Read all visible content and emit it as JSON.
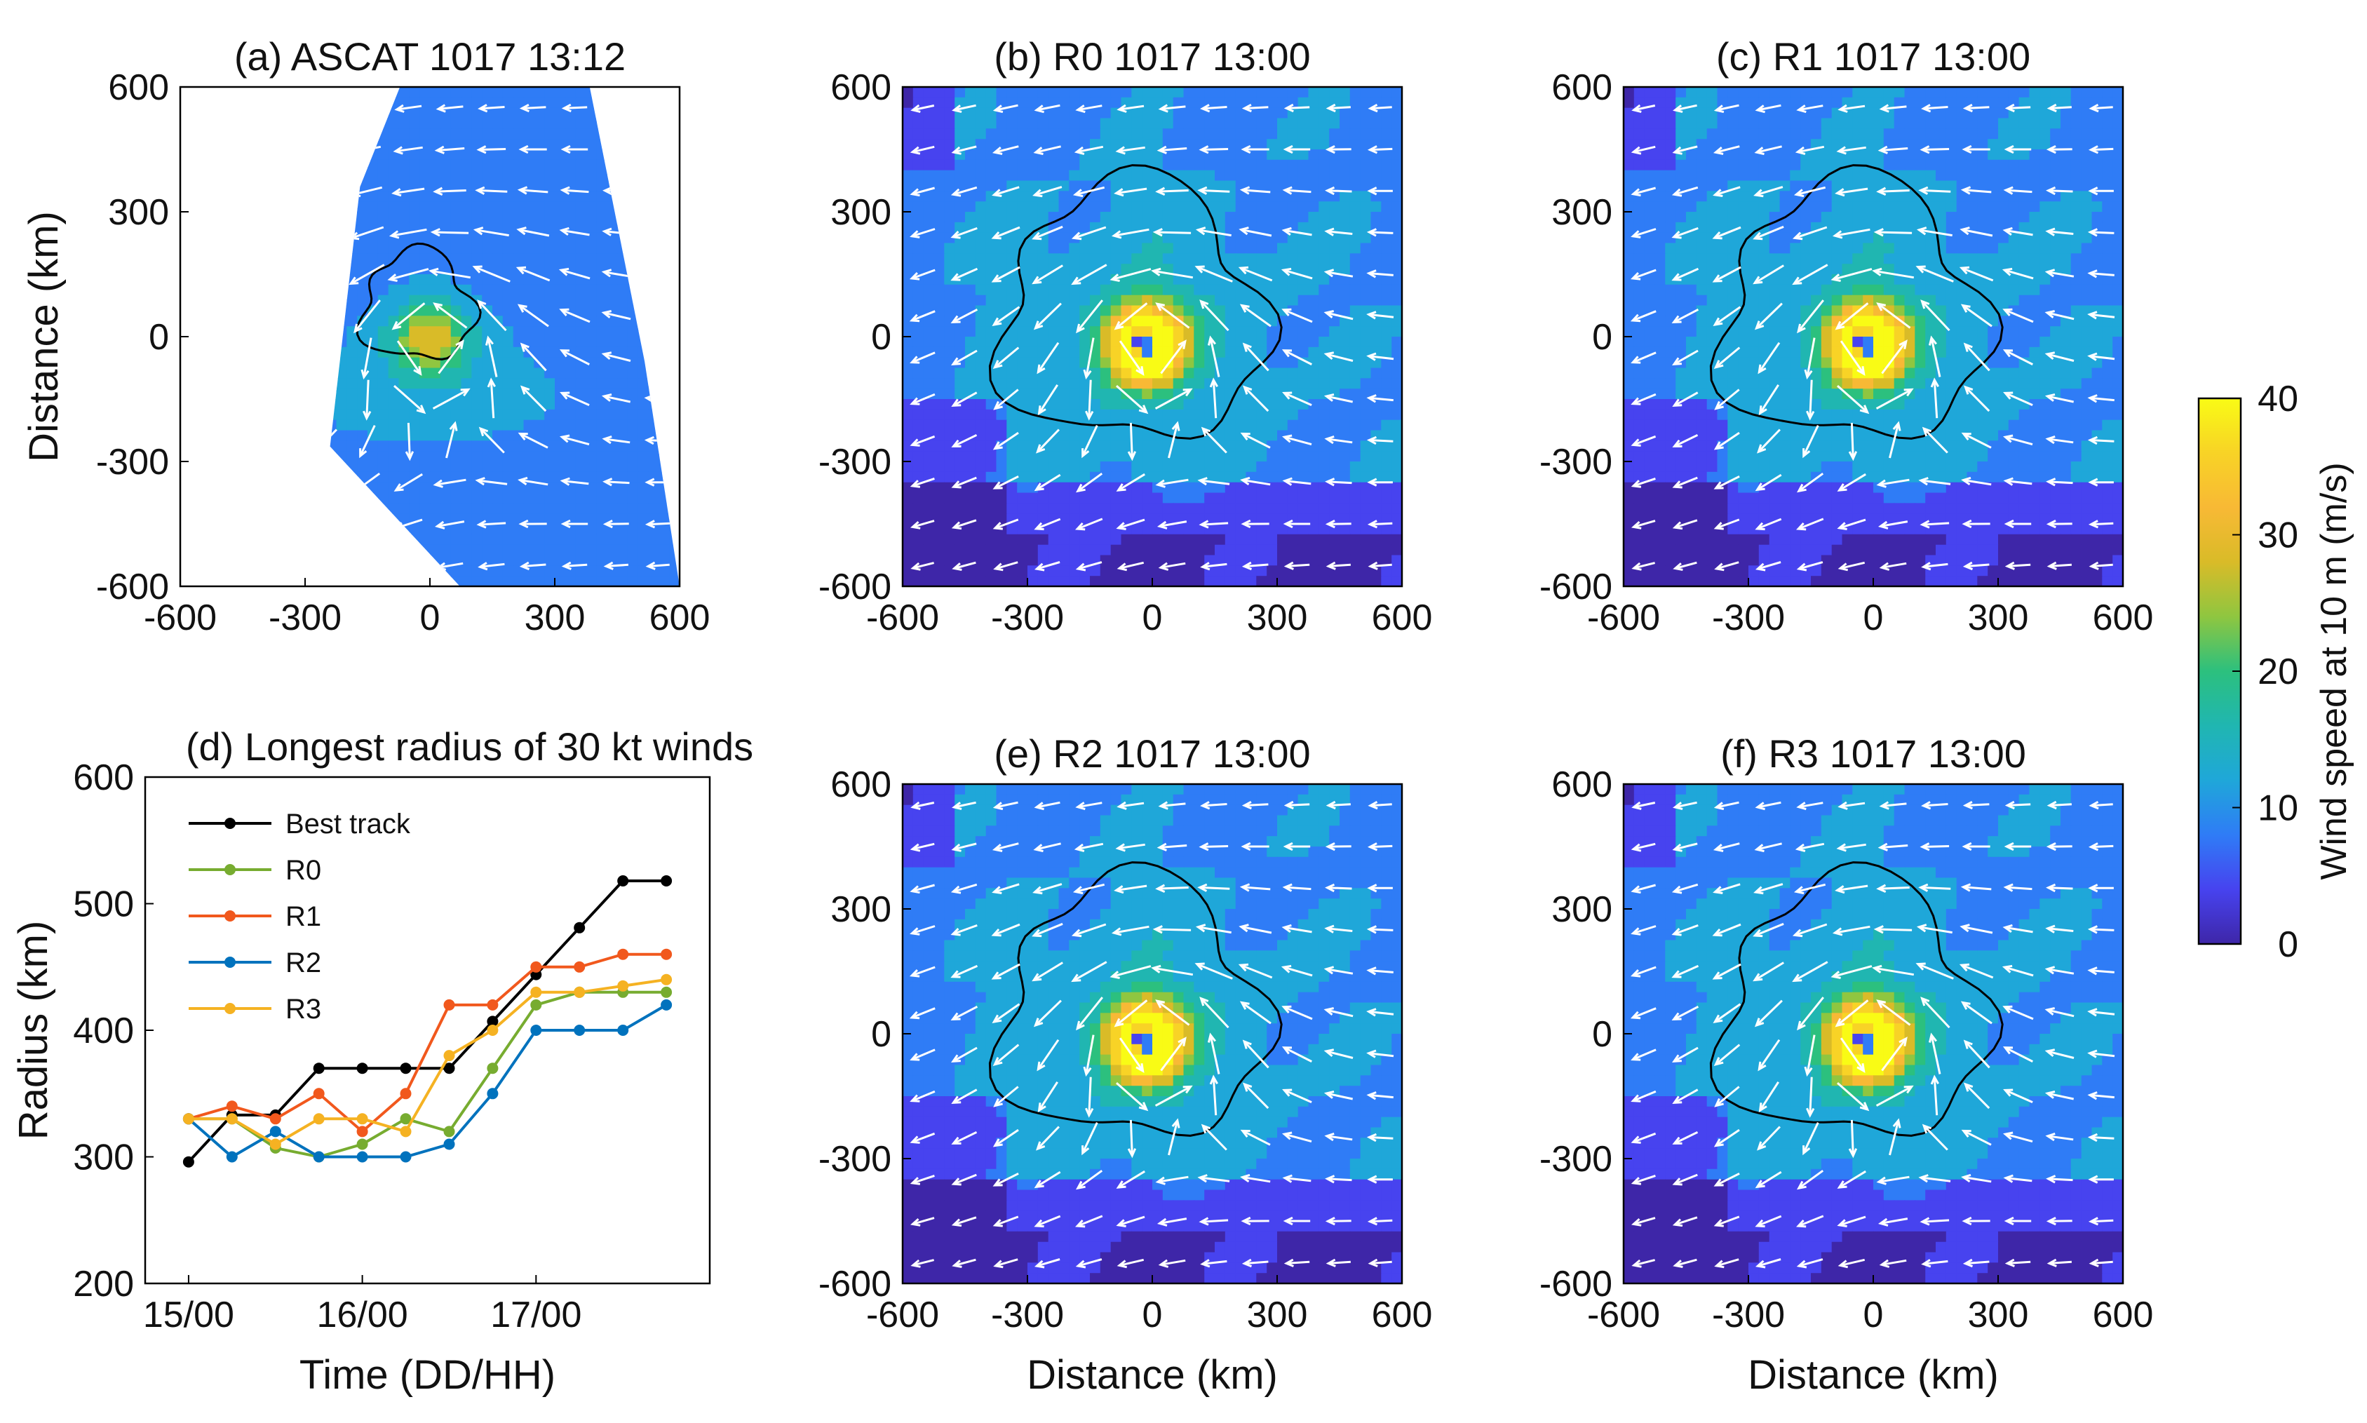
{
  "figure": {
    "colorbar": {
      "label": "Wind speed at 10 m (m/s)",
      "ticks": [
        "0",
        "10",
        "20",
        "30",
        "40"
      ],
      "range": [
        0,
        40
      ],
      "colormap": [
        "#3e26a8",
        "#4743ef",
        "#2f7cf6",
        "#1fa7d9",
        "#20b6b1",
        "#2cc07e",
        "#8fc640",
        "#d9bb28",
        "#f8b935",
        "#f8d326",
        "#f9fb15"
      ]
    },
    "distance_ticks": [
      "-600",
      "-300",
      "0",
      "300",
      "600"
    ],
    "ylabel_distance": "Distance (km)",
    "xlabel_distance": "Distance (km)",
    "map_panels": [
      {
        "id": "a",
        "title": "(a) ASCAT 1017 13:12",
        "source": "ASCAT",
        "time": "1017 13:12"
      },
      {
        "id": "b",
        "title": "(b) R0 1017 13:00",
        "source": "R0",
        "time": "1017 13:00"
      },
      {
        "id": "c",
        "title": "(c) R1 1017 13:00",
        "source": "R1",
        "time": "1017 13:00"
      },
      {
        "id": "e",
        "title": "(e) R2 1017 13:00",
        "source": "R2",
        "time": "1017 13:00"
      },
      {
        "id": "f",
        "title": "(f) R3 1017 13:00",
        "source": "R3",
        "time": "1017 13:00"
      }
    ]
  },
  "chart_data": {
    "type": "line",
    "title": "(d) Longest radius of 30 kt winds",
    "xlabel": "Time (DD/HH)",
    "ylabel": "Radius (km)",
    "x": [
      0,
      6,
      12,
      18,
      24,
      30,
      36,
      42,
      48,
      54,
      60,
      66
    ],
    "xticks": [
      0,
      24,
      48
    ],
    "xtick_labels": [
      "15/00",
      "16/00",
      "17/00"
    ],
    "xlim": [
      -6,
      72
    ],
    "ylim": [
      200,
      600
    ],
    "yticks": [
      "200",
      "300",
      "400",
      "500",
      "600"
    ],
    "legend_position": "top-left",
    "series": [
      {
        "name": "Best track",
        "color": "#000000",
        "values": [
          296,
          333,
          333,
          370,
          370,
          370,
          370,
          407,
          444,
          481,
          518,
          518
        ]
      },
      {
        "name": "R0",
        "color": "#77ac30",
        "values": [
          330,
          330,
          307,
          300,
          310,
          330,
          320,
          370,
          420,
          430,
          430,
          430
        ]
      },
      {
        "name": "R1",
        "color": "#f1581d",
        "values": [
          330,
          340,
          330,
          350,
          320,
          350,
          420,
          420,
          450,
          450,
          460,
          460
        ]
      },
      {
        "name": "R2",
        "color": "#0072bd",
        "values": [
          330,
          300,
          320,
          300,
          300,
          300,
          310,
          350,
          400,
          400,
          400,
          420
        ]
      },
      {
        "name": "R3",
        "color": "#f5b222",
        "values": [
          330,
          330,
          310,
          330,
          330,
          320,
          380,
          400,
          430,
          430,
          435,
          440
        ]
      }
    ]
  }
}
